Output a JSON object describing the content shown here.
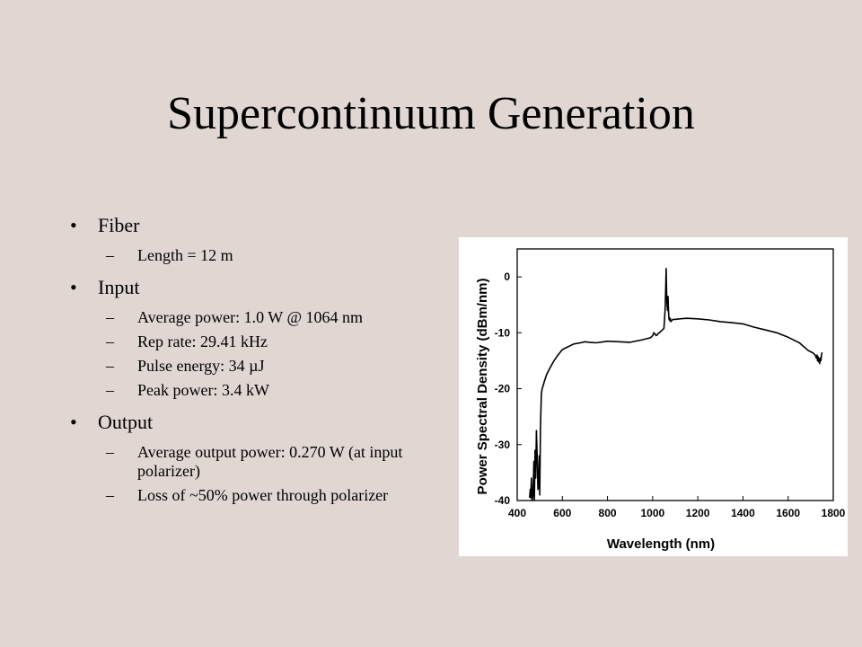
{
  "slide": {
    "title": "Supercontinuum Generation",
    "sections": [
      {
        "heading": "Fiber",
        "items": [
          "Length = 12 m"
        ]
      },
      {
        "heading": "Input",
        "items": [
          "Average power: 1.0 W @ 1064 nm",
          "Rep rate: 29.41 kHz",
          "Pulse energy: 34 µJ",
          "Peak power: 3.4 kW"
        ]
      },
      {
        "heading": "Output",
        "items": [
          "Average output power: 0.270 W (at input polarizer)",
          "Loss of ~50% power through polarizer"
        ]
      }
    ]
  },
  "chart_data": {
    "type": "line",
    "xlabel": "Wavelength (nm)",
    "ylabel": "Power Spectral Density (dBm/nm)",
    "xlim": [
      400,
      1800
    ],
    "ylim": [
      -40,
      5
    ],
    "xticks": [
      400,
      600,
      800,
      1000,
      1200,
      1400,
      1600,
      1800
    ],
    "yticks": [
      0,
      -10,
      -20,
      -30,
      -40
    ],
    "series": [
      {
        "color": "#000000",
        "x": [
          455,
          458,
          460,
          463,
          466,
          470,
          474,
          476,
          479,
          482,
          485,
          489,
          492,
          495,
          498,
          500,
          503,
          505,
          507,
          510,
          515,
          520,
          530,
          545,
          560,
          580,
          600,
          625,
          650,
          680,
          700,
          720,
          750,
          800,
          850,
          900,
          950,
          990,
          1000,
          1005,
          1010,
          1015,
          1020,
          1025,
          1030,
          1040,
          1050,
          1055,
          1058,
          1060,
          1062,
          1064,
          1066,
          1068,
          1070,
          1072,
          1075,
          1078,
          1080,
          1085,
          1090,
          1100,
          1120,
          1150,
          1200,
          1250,
          1300,
          1350,
          1400,
          1450,
          1500,
          1550,
          1600,
          1650,
          1670,
          1690,
          1700,
          1710,
          1720,
          1725,
          1728,
          1730,
          1733,
          1735,
          1738,
          1740,
          1742,
          1745,
          1748,
          1750
        ],
        "y": [
          -39.5,
          -38,
          -39.5,
          -36,
          -40,
          -39,
          -33,
          -40,
          -31,
          -36,
          -27.5,
          -33,
          -38,
          -37,
          -32,
          -39,
          -27,
          -24,
          -21,
          -20,
          -19.5,
          -18.7,
          -17.5,
          -16.3,
          -15.2,
          -14,
          -13,
          -12.5,
          -12,
          -11.8,
          -11.6,
          -11.7,
          -11.8,
          -11.5,
          -11.6,
          -11.7,
          -11.3,
          -10.9,
          -10.5,
          -10,
          -10.2,
          -10.5,
          -10.4,
          -10.1,
          -10,
          -9.6,
          -9.2,
          -6,
          -2,
          1.5,
          -3,
          -5,
          -6,
          -3.5,
          -6,
          -7.5,
          -7.8,
          -7.4,
          -8,
          -7.8,
          -7.6,
          -7.6,
          -7.5,
          -7.4,
          -7.5,
          -7.7,
          -8,
          -8.2,
          -8.4,
          -9,
          -9.5,
          -10,
          -10.8,
          -11.8,
          -12.5,
          -13.2,
          -13.4,
          -13.6,
          -14,
          -14.5,
          -14,
          -15,
          -14.3,
          -15.2,
          -14.7,
          -15.5,
          -14.5,
          -15,
          -14,
          -13.5
        ]
      }
    ]
  }
}
